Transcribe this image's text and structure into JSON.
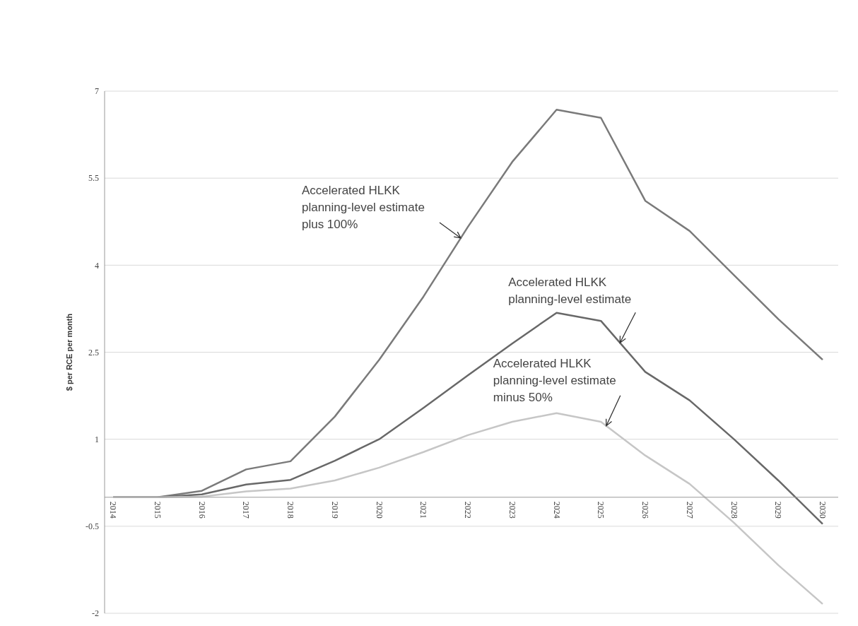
{
  "chart_data": {
    "type": "line",
    "ylabel": "$ per RCE per month",
    "categories": [
      "2014",
      "2015",
      "2016",
      "2017",
      "2018",
      "2019",
      "2020",
      "2021",
      "2022",
      "2023",
      "2024",
      "2025",
      "2026",
      "2027",
      "2028",
      "2029",
      "2030"
    ],
    "series": [
      {
        "name": "Accelerated HLKK planning-level estimate plus 100%",
        "color": "#7a7a7a",
        "values": [
          0,
          0,
          0.11,
          0.48,
          0.62,
          1.39,
          2.37,
          3.46,
          4.66,
          5.78,
          6.68,
          6.54,
          5.11,
          4.59,
          3.83,
          3.07,
          2.37
        ]
      },
      {
        "name": "Accelerated HLKK planning-level estimate",
        "color": "#686868",
        "values": [
          0,
          0,
          0.05,
          0.22,
          0.3,
          0.63,
          1.0,
          1.54,
          2.1,
          2.65,
          3.18,
          3.04,
          2.16,
          1.67,
          1.0,
          0.29,
          -0.46
        ]
      },
      {
        "name": "Accelerated HLKK planning-level estimate minus 50%",
        "color": "#c6c6c6",
        "values": [
          0,
          0,
          0.01,
          0.1,
          0.15,
          0.29,
          0.51,
          0.78,
          1.07,
          1.3,
          1.45,
          1.3,
          0.72,
          0.23,
          -0.44,
          -1.17,
          -1.84
        ]
      }
    ],
    "ylim": [
      -2,
      7
    ],
    "yticks": [
      -2,
      -0.5,
      1,
      2.5,
      4,
      5.5,
      7
    ],
    "grid": "y"
  }
}
